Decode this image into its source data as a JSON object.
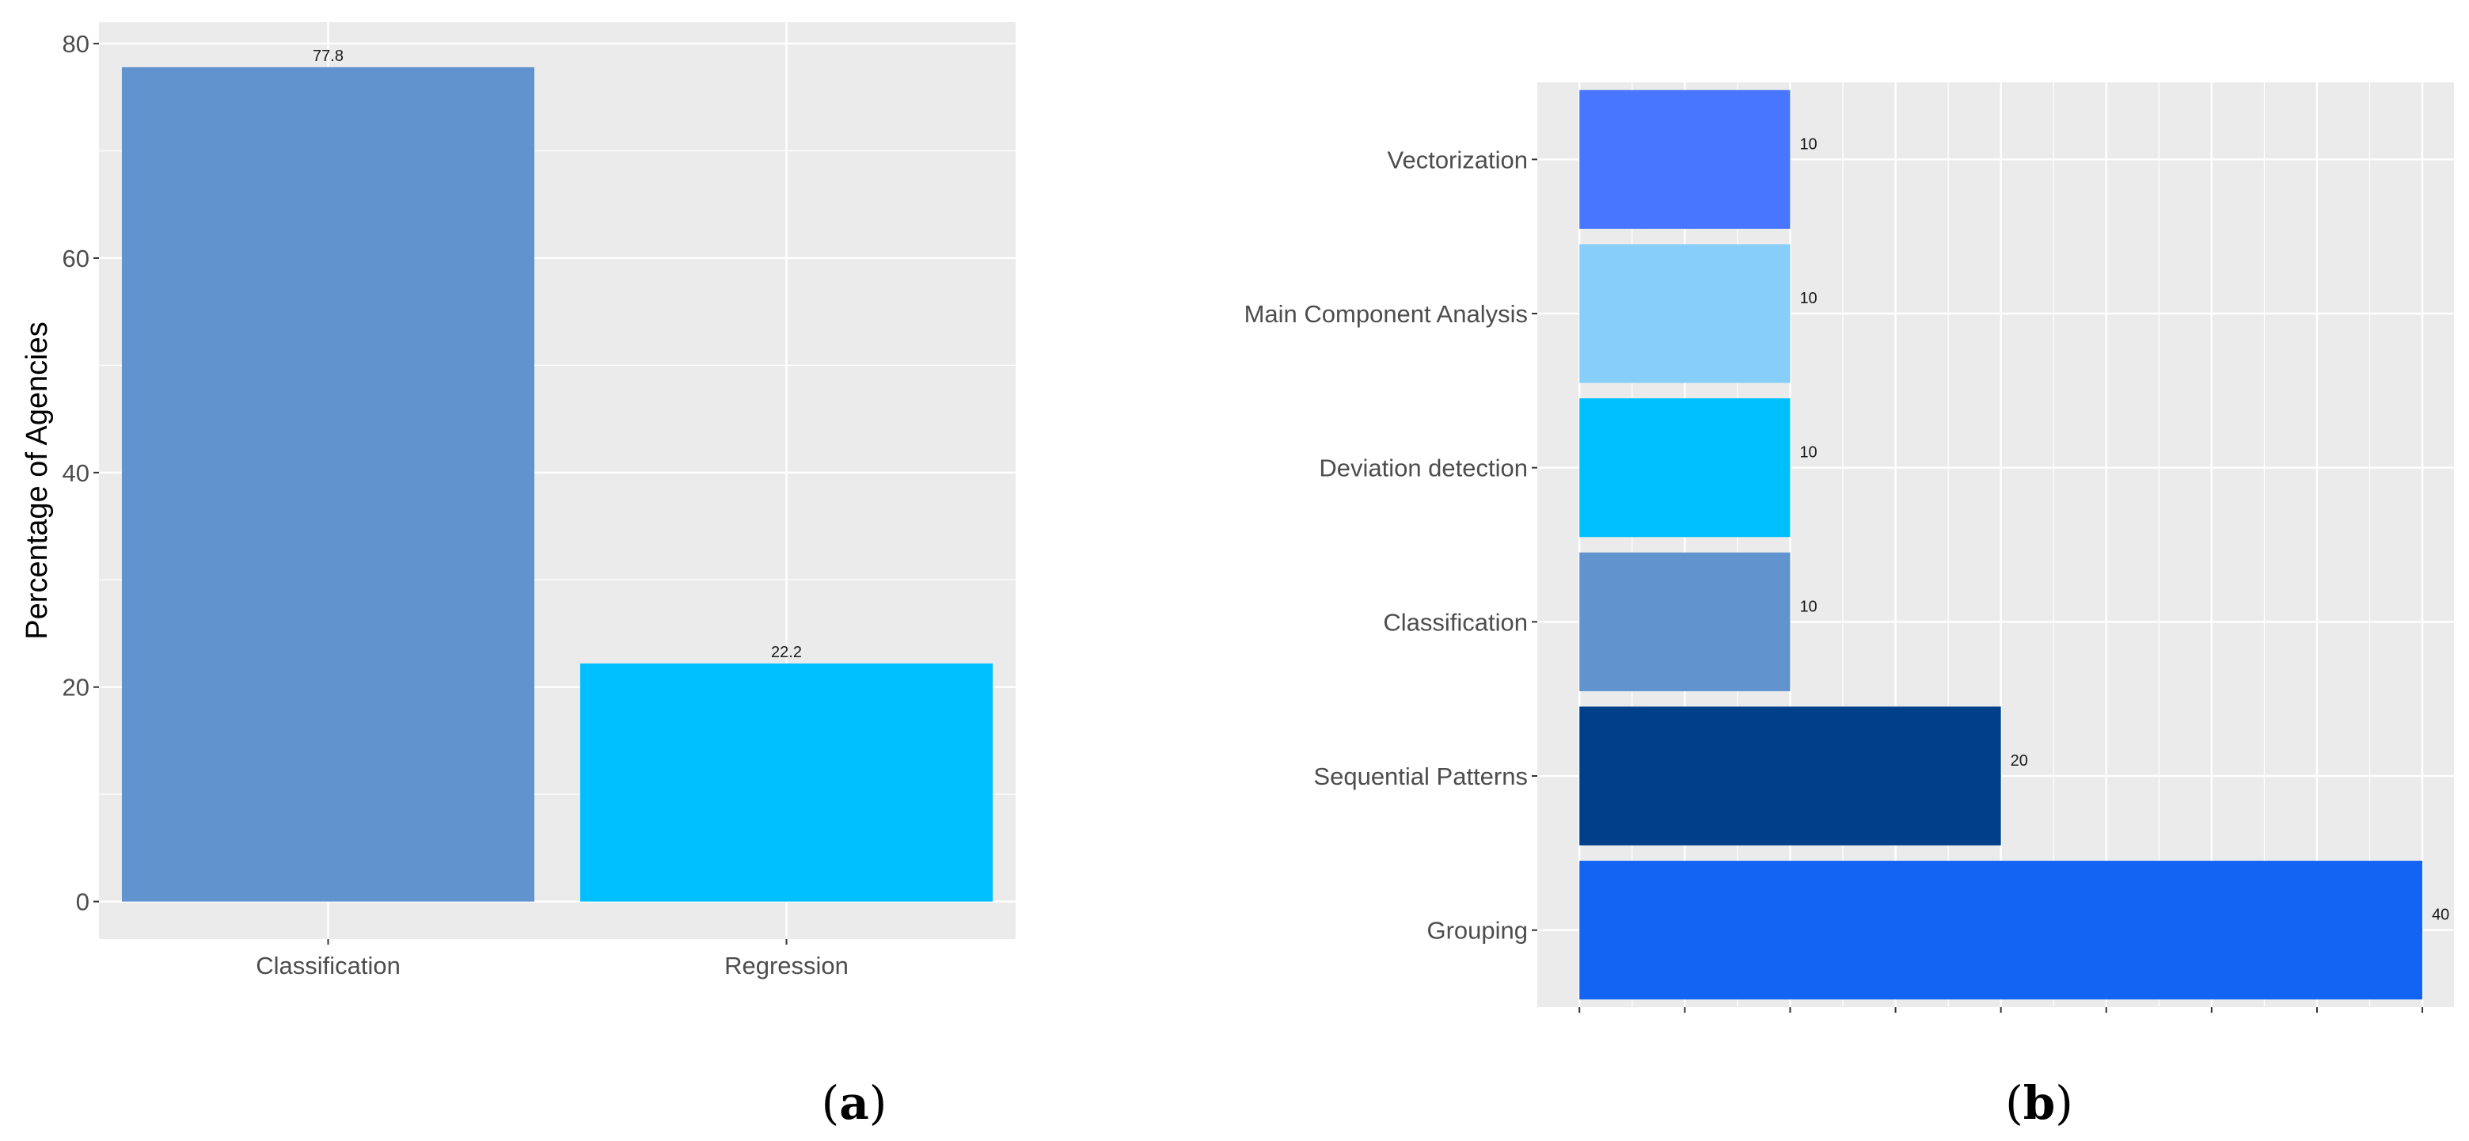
{
  "chart_data": [
    {
      "type": "bar",
      "orientation": "vertical",
      "panel_label": {
        "open": "(",
        "letter": "a",
        "close": ")"
      },
      "title": "",
      "xlabel": "",
      "ylabel": "Percentage of Agencies",
      "categories": [
        "Classification",
        "Regression"
      ],
      "values": [
        77.8,
        22.2
      ],
      "value_labels": [
        "77.8",
        "22.2"
      ],
      "colors": [
        "#6193CE",
        "#00BFFF"
      ],
      "ylim": [
        -3.5,
        82
      ],
      "yticks": [
        0,
        20,
        40,
        60,
        80
      ],
      "ytick_labels": [
        "0",
        "20",
        "40",
        "60",
        "80"
      ],
      "grid": true
    },
    {
      "type": "bar",
      "orientation": "horizontal",
      "panel_label": {
        "open": "(",
        "letter": "b",
        "close": ")"
      },
      "title": "",
      "xlabel": "",
      "ylabel": "",
      "categories": [
        "Vectorization",
        "Main Component Analysis",
        "Deviation detection",
        "Classification",
        "Sequential Patterns",
        "Grouping"
      ],
      "values": [
        10,
        10,
        10,
        10,
        20,
        40
      ],
      "value_labels": [
        "10",
        "10",
        "10",
        "10",
        "20",
        "40"
      ],
      "colors": [
        "#4876FF",
        "#87CEFA",
        "#00BFFF",
        "#6193CE",
        "#00408A",
        "#1464F4"
      ],
      "xlim": [
        -2,
        41.5
      ],
      "xticks": [
        0,
        5,
        10,
        15,
        20,
        25,
        30,
        35,
        40
      ],
      "grid": true
    }
  ]
}
